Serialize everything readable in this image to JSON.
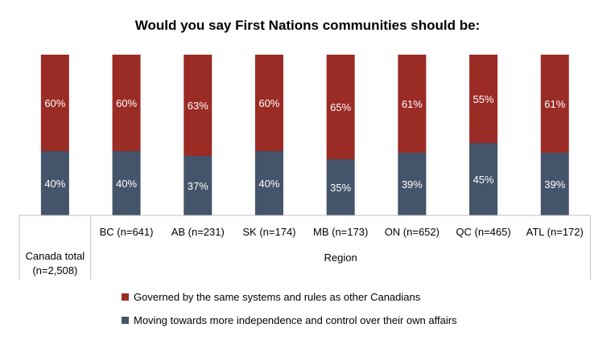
{
  "chart_data": {
    "type": "bar",
    "stacked": true,
    "normalized_percent": true,
    "title": "Would you say First Nations communities should be:",
    "categories": [
      "Canada total (n=2,508)",
      "BC (n=641)",
      "AB (n=231)",
      "SK (n=174)",
      "MB (n=173)",
      "ON (n=652)",
      "QC (n=465)",
      "ATL (n=172)"
    ],
    "category_display": [
      [
        "Canada total",
        "(n=2,508)"
      ],
      [
        "BC (n=641)"
      ],
      [
        "AB (n=231)"
      ],
      [
        "SK (n=174)"
      ],
      [
        "MB (n=173)"
      ],
      [
        "ON (n=652)"
      ],
      [
        "QC (n=465)"
      ],
      [
        "ATL (n=172)"
      ]
    ],
    "group_label": "Region",
    "series": [
      {
        "name": "Moving towards more independence and control over their own affairs",
        "color": "#44546a",
        "values": [
          40,
          40,
          37,
          40,
          35,
          39,
          45,
          39
        ],
        "labels": [
          "40%",
          "40%",
          "37%",
          "40%",
          "35%",
          "39%",
          "45%",
          "39%"
        ]
      },
      {
        "name": "Governed by the same systems and rules as other Canadians",
        "color": "#9b2b25",
        "values": [
          60,
          60,
          63,
          60,
          65,
          61,
          55,
          61
        ],
        "labels": [
          "60%",
          "60%",
          "63%",
          "60%",
          "65%",
          "61%",
          "55%",
          "61%"
        ]
      }
    ],
    "ylim": [
      0,
      100
    ],
    "xlabel": "",
    "ylabel": "",
    "legend_position": "bottom-left"
  }
}
